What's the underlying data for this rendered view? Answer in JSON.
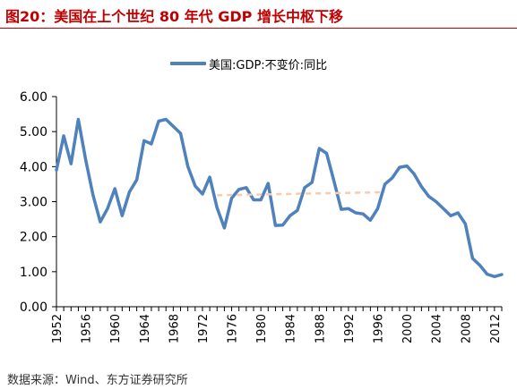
{
  "figure": {
    "title": "图20：美国在上个世纪 80 年代 GDP 增长中枢下移",
    "source": "数据来源：Wind、东方证券研究所"
  },
  "colors": {
    "title": "#c00000",
    "series": "#4f81bd",
    "trend": "#f8cbad",
    "axis": "#000000"
  },
  "chart_data": {
    "type": "line",
    "title": "",
    "xlabel": "",
    "ylabel": "",
    "ylim": [
      0,
      6
    ],
    "yticks": [
      "0.00",
      "1.00",
      "2.00",
      "3.00",
      "4.00",
      "5.00",
      "6.00"
    ],
    "xlim": [
      1952,
      2013
    ],
    "xticks": [
      "1952",
      "1956",
      "1960",
      "1964",
      "1968",
      "1972",
      "1976",
      "1980",
      "1984",
      "1988",
      "1992",
      "1996",
      "2000",
      "2004",
      "2008",
      "2012"
    ],
    "grid": false,
    "legend": "top",
    "series": [
      {
        "name": "美国:GDP:不变价:同比",
        "x": [
          1952,
          1953,
          1954,
          1955,
          1956,
          1957,
          1958,
          1959,
          1960,
          1961,
          1962,
          1963,
          1964,
          1965,
          1966,
          1967,
          1968,
          1969,
          1970,
          1971,
          1972,
          1973,
          1974,
          1975,
          1976,
          1977,
          1978,
          1979,
          1980,
          1981,
          1982,
          1983,
          1984,
          1985,
          1986,
          1987,
          1988,
          1989,
          1990,
          1991,
          1992,
          1993,
          1994,
          1995,
          1996,
          1997,
          1998,
          1999,
          2000,
          2001,
          2002,
          2003,
          2004,
          2005,
          2006,
          2007,
          2008,
          2009,
          2010,
          2011,
          2012,
          2013
        ],
        "values": [
          3.9,
          4.88,
          4.08,
          5.35,
          4.2,
          3.2,
          2.42,
          2.8,
          3.37,
          2.6,
          3.28,
          3.62,
          4.74,
          4.65,
          5.3,
          5.35,
          5.15,
          4.95,
          4.0,
          3.45,
          3.22,
          3.7,
          2.83,
          2.25,
          3.1,
          3.35,
          3.4,
          3.05,
          3.05,
          3.52,
          2.32,
          2.33,
          2.6,
          2.75,
          3.4,
          3.55,
          4.52,
          4.38,
          3.6,
          2.78,
          2.8,
          2.68,
          2.65,
          2.47,
          2.8,
          3.5,
          3.68,
          3.98,
          4.02,
          3.79,
          3.43,
          3.15,
          3.0,
          2.8,
          2.6,
          2.68,
          2.37,
          1.38,
          1.18,
          0.93,
          0.86,
          0.92
        ]
      },
      {
        "name": "",
        "style": "dashed",
        "x": [
          1974,
          1997
        ],
        "values": [
          3.18,
          3.27
        ]
      }
    ]
  }
}
